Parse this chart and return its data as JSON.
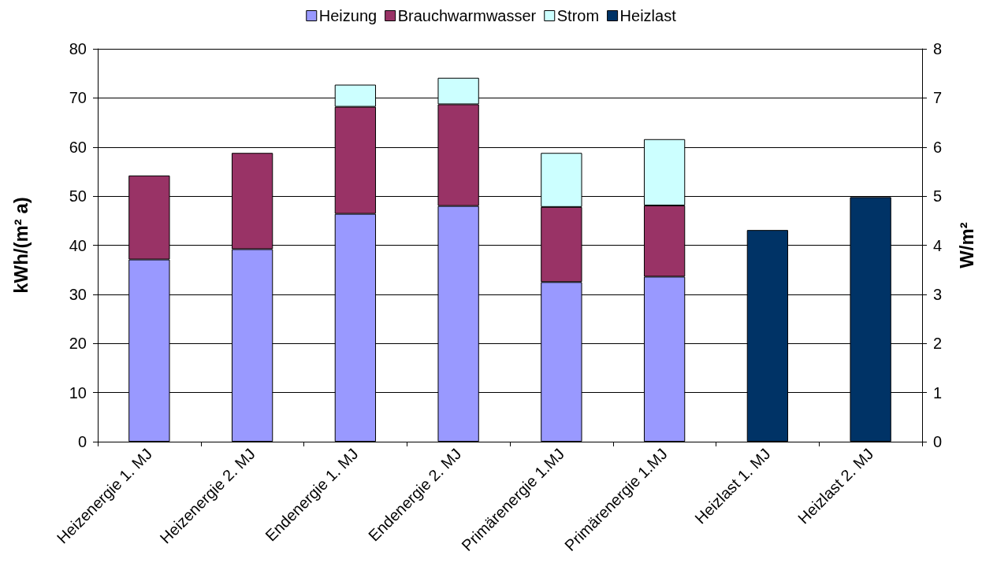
{
  "chart_data": {
    "type": "bar",
    "stacked": true,
    "categories": [
      "Heizenergie 1. MJ",
      "Heizenergie 2. MJ",
      "Endenergie 1. MJ",
      "Endenergie 2. MJ",
      "Primärenergie 1.MJ",
      "Primärenergie 1.MJ",
      "Heizlast 1. MJ",
      "Heizlast 2. MJ"
    ],
    "series": [
      {
        "name": "Heizung",
        "color": "#9999ff",
        "values": [
          37.1,
          39.2,
          46.4,
          48.0,
          32.5,
          33.6,
          null,
          null
        ]
      },
      {
        "name": "Brauchwarmwasser",
        "color": "#993366",
        "values": [
          17.1,
          19.6,
          21.8,
          20.7,
          15.3,
          14.5,
          null,
          null
        ]
      },
      {
        "name": "Strom",
        "color": "#ccffff",
        "values": [
          null,
          null,
          4.5,
          5.4,
          11.0,
          13.5,
          null,
          null
        ]
      },
      {
        "name": "Heizlast",
        "color": "#003366",
        "axis": "y2",
        "values": [
          null,
          null,
          null,
          null,
          null,
          null,
          4.31,
          4.98
        ]
      }
    ],
    "ylabel": "kWh/(m² a)",
    "y2label": "W/m²",
    "ylim": [
      0,
      80
    ],
    "yticks": [
      0,
      10,
      20,
      30,
      40,
      50,
      60,
      70,
      80
    ],
    "y2lim": [
      0,
      8
    ],
    "y2ticks": [
      0,
      1,
      2,
      3,
      4,
      5,
      6,
      7,
      8
    ],
    "grid": "y",
    "legend": "top"
  }
}
